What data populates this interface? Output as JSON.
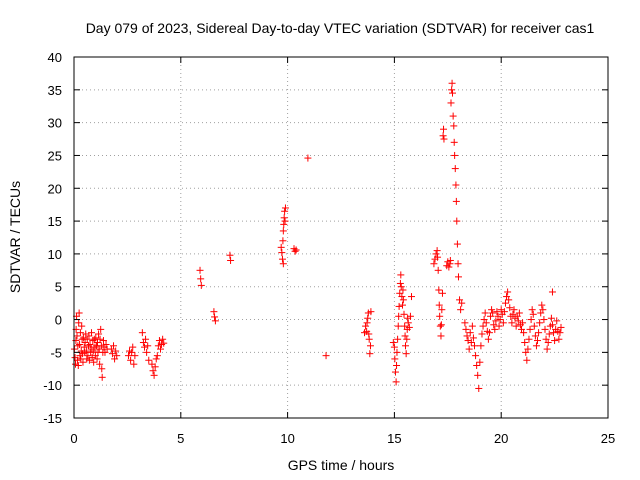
{
  "chart_data": {
    "type": "scatter",
    "title": "Day 079 of 2023, Sidereal Day-to-day VTEC variation (SDTVAR) for receiver cas1",
    "xlabel": "GPS time / hours",
    "ylabel": "SDTVAR / TECUs",
    "xlim": [
      0,
      25
    ],
    "ylim": [
      -15,
      40
    ],
    "xticks": [
      "0",
      "5",
      "10",
      "15",
      "20",
      "25"
    ],
    "yticks": [
      "-15",
      "-10",
      "-5",
      "0",
      "5",
      "10",
      "15",
      "20",
      "25",
      "30",
      "35",
      "40"
    ],
    "grid": true,
    "marker": "+",
    "color": "#ff0000",
    "series": [
      {
        "name": "cas1",
        "points": [
          [
            0.02,
            -4.5
          ],
          [
            0.05,
            -5.8
          ],
          [
            0.07,
            -6.8
          ],
          [
            0.09,
            -3.2
          ],
          [
            0.1,
            -1.5
          ],
          [
            0.12,
            0.5
          ],
          [
            0.14,
            -2.5
          ],
          [
            0.16,
            -6.2
          ],
          [
            0.18,
            -4.0
          ],
          [
            0.2,
            -7.0
          ],
          [
            0.22,
            -0.5
          ],
          [
            0.24,
            1.0
          ],
          [
            0.26,
            -3.8
          ],
          [
            0.28,
            -5.5
          ],
          [
            0.3,
            -2.0
          ],
          [
            0.32,
            -6.0
          ],
          [
            0.34,
            -4.8
          ],
          [
            0.36,
            -1.0
          ],
          [
            0.38,
            -3.0
          ],
          [
            0.4,
            -5.2
          ],
          [
            0.42,
            -6.5
          ],
          [
            0.45,
            -2.8
          ],
          [
            0.48,
            -4.2
          ],
          [
            0.5,
            -5.0
          ],
          [
            0.52,
            -3.5
          ],
          [
            0.55,
            -2.2
          ],
          [
            0.58,
            -4.8
          ],
          [
            0.6,
            -6.0
          ],
          [
            0.62,
            -3.0
          ],
          [
            0.65,
            -5.5
          ],
          [
            0.68,
            -4.0
          ],
          [
            0.7,
            -2.5
          ],
          [
            0.72,
            -6.2
          ],
          [
            0.75,
            -3.8
          ],
          [
            0.78,
            -5.0
          ],
          [
            0.8,
            -4.5
          ],
          [
            0.82,
            -2.0
          ],
          [
            0.85,
            -5.8
          ],
          [
            0.88,
            -3.2
          ],
          [
            0.9,
            -4.8
          ],
          [
            0.92,
            -6.5
          ],
          [
            0.95,
            -3.0
          ],
          [
            0.98,
            -4.2
          ],
          [
            1.0,
            -5.5
          ],
          [
            1.02,
            -2.8
          ],
          [
            1.05,
            -4.0
          ],
          [
            1.08,
            -6.0
          ],
          [
            1.1,
            -3.5
          ],
          [
            1.12,
            -5.0
          ],
          [
            1.15,
            -2.2
          ],
          [
            1.18,
            -4.5
          ],
          [
            1.2,
            -6.8
          ],
          [
            1.22,
            -3.0
          ],
          [
            1.25,
            -1.5
          ],
          [
            1.28,
            -4.0
          ],
          [
            1.3,
            -7.5
          ],
          [
            1.32,
            -8.8
          ],
          [
            1.35,
            -5.0
          ],
          [
            1.38,
            -3.2
          ],
          [
            1.4,
            -4.2
          ],
          [
            1.45,
            -5.0
          ],
          [
            1.5,
            -3.8
          ],
          [
            1.55,
            -4.5
          ],
          [
            1.75,
            -4.5
          ],
          [
            1.8,
            -5.2
          ],
          [
            1.85,
            -4.0
          ],
          [
            1.9,
            -6.0
          ],
          [
            1.95,
            -4.8
          ],
          [
            2.0,
            -5.5
          ],
          [
            2.55,
            -5.5
          ],
          [
            2.6,
            -4.8
          ],
          [
            2.65,
            -6.2
          ],
          [
            2.7,
            -5.0
          ],
          [
            2.75,
            -4.2
          ],
          [
            2.8,
            -6.8
          ],
          [
            2.85,
            -5.5
          ],
          [
            3.2,
            -2.0
          ],
          [
            3.25,
            -3.5
          ],
          [
            3.3,
            -4.2
          ],
          [
            3.35,
            -3.0
          ],
          [
            3.4,
            -5.0
          ],
          [
            3.45,
            -4.0
          ],
          [
            3.5,
            -6.2
          ],
          [
            3.65,
            -6.8
          ],
          [
            3.7,
            -7.8
          ],
          [
            3.75,
            -8.5
          ],
          [
            3.8,
            -7.2
          ],
          [
            3.85,
            -6.0
          ],
          [
            3.9,
            -5.5
          ],
          [
            3.95,
            -4.0
          ],
          [
            4.0,
            -3.2
          ],
          [
            4.05,
            -4.5
          ],
          [
            4.1,
            -3.8
          ],
          [
            4.15,
            -3.0
          ],
          [
            4.2,
            -3.6
          ],
          [
            5.9,
            7.5
          ],
          [
            5.93,
            6.2
          ],
          [
            5.96,
            5.2
          ],
          [
            6.55,
            1.2
          ],
          [
            6.58,
            0.4
          ],
          [
            6.62,
            -0.2
          ],
          [
            7.3,
            9.8
          ],
          [
            7.33,
            9.0
          ],
          [
            9.7,
            11.0
          ],
          [
            9.73,
            10.2
          ],
          [
            9.76,
            9.2
          ],
          [
            9.8,
            8.5
          ],
          [
            9.78,
            12.0
          ],
          [
            9.8,
            13.5
          ],
          [
            9.82,
            14.5
          ],
          [
            9.84,
            15.5
          ],
          [
            9.86,
            16.5
          ],
          [
            9.88,
            15.0
          ],
          [
            9.9,
            17.0
          ],
          [
            10.3,
            10.8
          ],
          [
            10.35,
            10.4
          ],
          [
            10.4,
            10.6
          ],
          [
            10.95,
            24.6
          ],
          [
            11.8,
            -5.5
          ],
          [
            13.6,
            -2.0
          ],
          [
            13.65,
            -1.0
          ],
          [
            13.7,
            -1.8
          ],
          [
            13.72,
            -0.5
          ],
          [
            13.75,
            0.2
          ],
          [
            13.78,
            1.0
          ],
          [
            13.8,
            -2.2
          ],
          [
            13.82,
            -3.0
          ],
          [
            13.85,
            -5.2
          ],
          [
            13.88,
            -4.0
          ],
          [
            13.9,
            1.2
          ],
          [
            14.95,
            -3.5
          ],
          [
            15.0,
            -4.2
          ],
          [
            15.02,
            -6.0
          ],
          [
            15.05,
            -8.0
          ],
          [
            15.08,
            -9.5
          ],
          [
            15.1,
            -7.0
          ],
          [
            15.12,
            -5.0
          ],
          [
            15.15,
            -3.0
          ],
          [
            15.18,
            -1.0
          ],
          [
            15.2,
            0.5
          ],
          [
            15.22,
            2.0
          ],
          [
            15.25,
            4.0
          ],
          [
            15.28,
            5.5
          ],
          [
            15.3,
            6.8
          ],
          [
            15.32,
            5.0
          ],
          [
            15.35,
            3.5
          ],
          [
            15.38,
            2.2
          ],
          [
            15.4,
            4.5
          ],
          [
            15.42,
            3.0
          ],
          [
            15.45,
            0.8
          ],
          [
            15.48,
            -1.0
          ],
          [
            15.5,
            -2.5
          ],
          [
            15.52,
            -4.0
          ],
          [
            15.55,
            -5.2
          ],
          [
            15.58,
            -3.0
          ],
          [
            15.6,
            -1.5
          ],
          [
            15.62,
            0.2
          ],
          [
            15.65,
            -0.5
          ],
          [
            15.7,
            -1.2
          ],
          [
            15.75,
            0.5
          ],
          [
            15.8,
            3.5
          ],
          [
            16.85,
            8.5
          ],
          [
            16.9,
            9.2
          ],
          [
            16.95,
            10.0
          ],
          [
            17.0,
            10.5
          ],
          [
            17.02,
            9.5
          ],
          [
            17.05,
            7.5
          ],
          [
            17.08,
            4.5
          ],
          [
            17.1,
            2.2
          ],
          [
            17.12,
            0.5
          ],
          [
            17.15,
            -1.0
          ],
          [
            17.18,
            -2.5
          ],
          [
            17.2,
            -0.8
          ],
          [
            17.22,
            1.5
          ],
          [
            17.25,
            4.0
          ],
          [
            17.28,
            28.0
          ],
          [
            17.3,
            29.0
          ],
          [
            17.32,
            27.5
          ],
          [
            17.45,
            8.2
          ],
          [
            17.5,
            8.8
          ],
          [
            17.55,
            8.0
          ],
          [
            17.6,
            8.5
          ],
          [
            17.62,
            9.0
          ],
          [
            17.65,
            33.0
          ],
          [
            17.68,
            35.0
          ],
          [
            17.7,
            36.0
          ],
          [
            17.72,
            34.5
          ],
          [
            17.75,
            31.0
          ],
          [
            17.78,
            29.5
          ],
          [
            17.8,
            27.0
          ],
          [
            17.82,
            25.0
          ],
          [
            17.85,
            23.0
          ],
          [
            17.88,
            20.5
          ],
          [
            17.9,
            18.0
          ],
          [
            17.92,
            15.0
          ],
          [
            17.95,
            11.5
          ],
          [
            17.98,
            8.5
          ],
          [
            18.0,
            6.5
          ],
          [
            18.05,
            3.0
          ],
          [
            18.1,
            1.5
          ],
          [
            18.15,
            2.5
          ],
          [
            18.3,
            -0.5
          ],
          [
            18.35,
            -1.5
          ],
          [
            18.4,
            -2.5
          ],
          [
            18.45,
            -3.2
          ],
          [
            18.5,
            -4.5
          ],
          [
            18.55,
            -2.0
          ],
          [
            18.6,
            -3.5
          ],
          [
            18.65,
            -1.0
          ],
          [
            18.7,
            -2.8
          ],
          [
            18.75,
            -4.0
          ],
          [
            18.8,
            -5.5
          ],
          [
            18.85,
            -7.0
          ],
          [
            18.9,
            -8.5
          ],
          [
            18.95,
            -10.5
          ],
          [
            19.0,
            -6.5
          ],
          [
            19.05,
            -4.0
          ],
          [
            19.1,
            -2.2
          ],
          [
            19.15,
            -1.0
          ],
          [
            19.2,
            0.0
          ],
          [
            19.25,
            1.0
          ],
          [
            19.3,
            -0.5
          ],
          [
            19.35,
            -1.8
          ],
          [
            19.4,
            -3.0
          ],
          [
            19.45,
            -2.0
          ],
          [
            19.5,
            0.5
          ],
          [
            19.55,
            1.5
          ],
          [
            19.6,
            1.0
          ],
          [
            19.65,
            -0.8
          ],
          [
            19.7,
            -1.5
          ],
          [
            19.75,
            -0.2
          ],
          [
            19.8,
            1.2
          ],
          [
            19.85,
            0.5
          ],
          [
            19.9,
            -1.0
          ],
          [
            19.95,
            0.0
          ],
          [
            20.0,
            1.5
          ],
          [
            20.05,
            0.8
          ],
          [
            20.1,
            -0.5
          ],
          [
            20.15,
            1.2
          ],
          [
            20.2,
            2.5
          ],
          [
            20.25,
            3.5
          ],
          [
            20.3,
            4.2
          ],
          [
            20.35,
            3.0
          ],
          [
            20.4,
            1.8
          ],
          [
            20.45,
            0.5
          ],
          [
            20.5,
            -0.5
          ],
          [
            20.55,
            0.8
          ],
          [
            20.6,
            1.5
          ],
          [
            20.65,
            0.2
          ],
          [
            20.7,
            -1.0
          ],
          [
            20.75,
            0.5
          ],
          [
            20.8,
            -0.2
          ],
          [
            20.85,
            1.0
          ],
          [
            20.9,
            -0.8
          ],
          [
            20.95,
            -1.5
          ],
          [
            21.0,
            -0.5
          ],
          [
            21.05,
            -2.0
          ],
          [
            21.1,
            -3.5
          ],
          [
            21.15,
            -5.0
          ],
          [
            21.2,
            -6.2
          ],
          [
            21.25,
            -4.5
          ],
          [
            21.3,
            -3.0
          ],
          [
            21.35,
            -1.5
          ],
          [
            21.4,
            0.0
          ],
          [
            21.45,
            1.5
          ],
          [
            21.5,
            0.8
          ],
          [
            21.55,
            -1.0
          ],
          [
            21.6,
            -2.5
          ],
          [
            21.65,
            -4.0
          ],
          [
            21.7,
            -3.2
          ],
          [
            21.75,
            -2.0
          ],
          [
            21.8,
            -0.5
          ],
          [
            21.85,
            1.0
          ],
          [
            21.9,
            2.2
          ],
          [
            21.95,
            1.5
          ],
          [
            22.0,
            0.0
          ],
          [
            22.05,
            -1.5
          ],
          [
            22.1,
            -3.0
          ],
          [
            22.15,
            -4.5
          ],
          [
            22.2,
            -3.5
          ],
          [
            22.25,
            -2.2
          ],
          [
            22.3,
            -1.0
          ],
          [
            22.35,
            0.2
          ],
          [
            22.4,
            -0.8
          ],
          [
            22.45,
            -2.0
          ],
          [
            22.5,
            -3.2
          ],
          [
            22.55,
            -1.5
          ],
          [
            22.6,
            -0.2
          ],
          [
            22.65,
            -1.8
          ],
          [
            22.7,
            -3.0
          ],
          [
            22.75,
            -2.0
          ],
          [
            22.8,
            -1.2
          ],
          [
            22.4,
            4.2
          ]
        ]
      }
    ]
  }
}
